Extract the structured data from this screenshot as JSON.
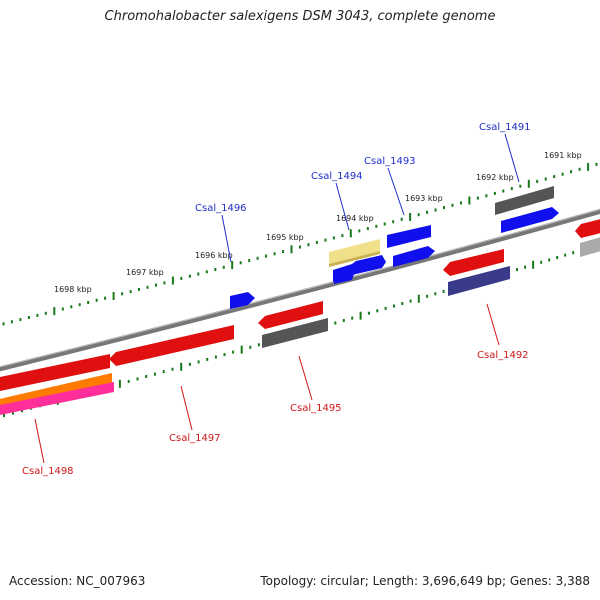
{
  "title": "Chromohalobacter salexigens DSM 3043, complete genome",
  "footer": {
    "accession": "Accession: NC_007963",
    "summary": "Topology: circular; Length: 3,696,649 bp; Genes: 3,388"
  },
  "colors": {
    "backbone": "#777777",
    "tick": "#1a7a1a",
    "forward_label": "#1f2fc8",
    "reverse_label": "#d01818"
  },
  "scale_labels": [
    "1691 kbp",
    "1692 kbp",
    "1693 kbp",
    "1694 kbp",
    "1695 kbp",
    "1696 kbp",
    "1697 kbp",
    "1698 kbp"
  ],
  "gene_labels": [
    {
      "text": "Csal_1491",
      "strand": "forward"
    },
    {
      "text": "Csal_1492",
      "strand": "reverse"
    },
    {
      "text": "Csal_1493",
      "strand": "forward"
    },
    {
      "text": "Csal_1494",
      "strand": "forward"
    },
    {
      "text": "Csal_1495",
      "strand": "reverse"
    },
    {
      "text": "Csal_1496",
      "strand": "forward"
    },
    {
      "text": "Csal_1497",
      "strand": "reverse"
    },
    {
      "text": "Csal_1498",
      "strand": "reverse"
    }
  ],
  "features": [
    {
      "color": "#1010ee"
    },
    {
      "color": "#1010ee"
    },
    {
      "color": "#1010ee"
    },
    {
      "color": "#1010ee"
    },
    {
      "color": "#1010ee"
    },
    {
      "color": "#555555"
    },
    {
      "color": "#f0e08a"
    },
    {
      "color": "#e01010"
    },
    {
      "color": "#e01010"
    },
    {
      "color": "#e01010"
    },
    {
      "color": "#e01010"
    },
    {
      "color": "#e01010"
    },
    {
      "color": "#555555"
    },
    {
      "color": "#3a3a8a"
    },
    {
      "color": "#ff7b00"
    },
    {
      "color": "#ff2e9a"
    },
    {
      "color": "#aaaaaa"
    }
  ]
}
